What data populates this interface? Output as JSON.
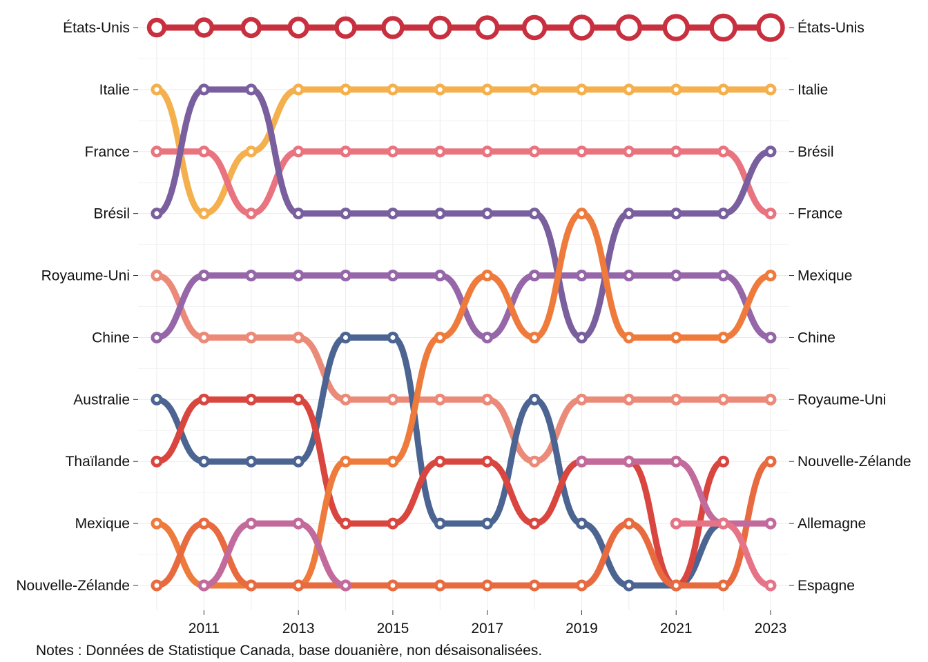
{
  "chart_data": {
    "type": "line",
    "subtype": "bump",
    "x": [
      2010,
      2011,
      2012,
      2013,
      2014,
      2015,
      2016,
      2017,
      2018,
      2019,
      2020,
      2021,
      2022,
      2023
    ],
    "x_ticks": [
      "2011",
      "2013",
      "2015",
      "2017",
      "2019",
      "2021",
      "2023"
    ],
    "x_tick_values": [
      2011,
      2013,
      2015,
      2017,
      2019,
      2021,
      2023
    ],
    "ylim": [
      10,
      1
    ],
    "y_axis": "rank",
    "grid": true,
    "left_labels": [
      "États-Unis",
      "Italie",
      "France",
      "Brésil",
      "Royaume-Uni",
      "Chine",
      "Australie",
      "Thaïlande",
      "Mexique",
      "Nouvelle-Zélande"
    ],
    "right_labels": [
      "États-Unis",
      "Italie",
      "Brésil",
      "France",
      "Mexique",
      "Chine",
      "Royaume-Uni",
      "Nouvelle-Zélande",
      "Allemagne",
      "Espagne"
    ],
    "series": [
      {
        "key": "us",
        "color": "#c8303f",
        "ranks": [
          1,
          1,
          1,
          1,
          1,
          1,
          1,
          1,
          1,
          1,
          1,
          1,
          1,
          1
        ]
      },
      {
        "key": "it",
        "color": "#f5b04e",
        "ranks": [
          2,
          4,
          3,
          2,
          2,
          2,
          2,
          2,
          2,
          2,
          2,
          2,
          2,
          2
        ]
      },
      {
        "key": "fr",
        "color": "#e9737f",
        "ranks": [
          3,
          3,
          4,
          3,
          3,
          3,
          3,
          3,
          3,
          3,
          3,
          3,
          3,
          4
        ]
      },
      {
        "key": "br",
        "color": "#7a5f9e",
        "ranks": [
          4,
          2,
          2,
          4,
          4,
          4,
          4,
          4,
          4,
          6,
          4,
          4,
          4,
          3
        ]
      },
      {
        "key": "uk",
        "color": "#eb8a78",
        "ranks": [
          5,
          6,
          6,
          6,
          7,
          7,
          7,
          7,
          8,
          7,
          7,
          7,
          7,
          7
        ]
      },
      {
        "key": "cn",
        "color": "#9566a8",
        "ranks": [
          6,
          5,
          5,
          5,
          5,
          5,
          5,
          6,
          5,
          5,
          5,
          5,
          5,
          6
        ]
      },
      {
        "key": "au",
        "color": "#4b6491",
        "ranks": [
          7,
          8,
          8,
          8,
          6,
          6,
          9,
          9,
          7,
          9,
          10,
          10,
          9,
          null
        ]
      },
      {
        "key": "th",
        "color": "#d9463f",
        "ranks": [
          8,
          7,
          7,
          7,
          9,
          9,
          8,
          8,
          9,
          8,
          8,
          10,
          8,
          null
        ]
      },
      {
        "key": "mx",
        "color": "#ee7b3c",
        "ranks": [
          9,
          10,
          10,
          10,
          8,
          8,
          6,
          5,
          6,
          4,
          6,
          6,
          6,
          5
        ]
      },
      {
        "key": "nz",
        "color": "#e86b40",
        "ranks": [
          10,
          9,
          10,
          10,
          10,
          10,
          10,
          10,
          10,
          10,
          9,
          10,
          10,
          8
        ]
      },
      {
        "key": "de",
        "color": "#c36a9c",
        "ranks": [
          null,
          10,
          9,
          9,
          10,
          null,
          null,
          null,
          null,
          8,
          8,
          8,
          9,
          9
        ]
      },
      {
        "key": "es",
        "color": "#e77387",
        "ranks": [
          null,
          null,
          null,
          null,
          null,
          null,
          null,
          null,
          null,
          null,
          null,
          9,
          9,
          10
        ]
      }
    ]
  },
  "notes": "Notes : Données de Statistique Canada, base douanière, non désaisonalisées."
}
